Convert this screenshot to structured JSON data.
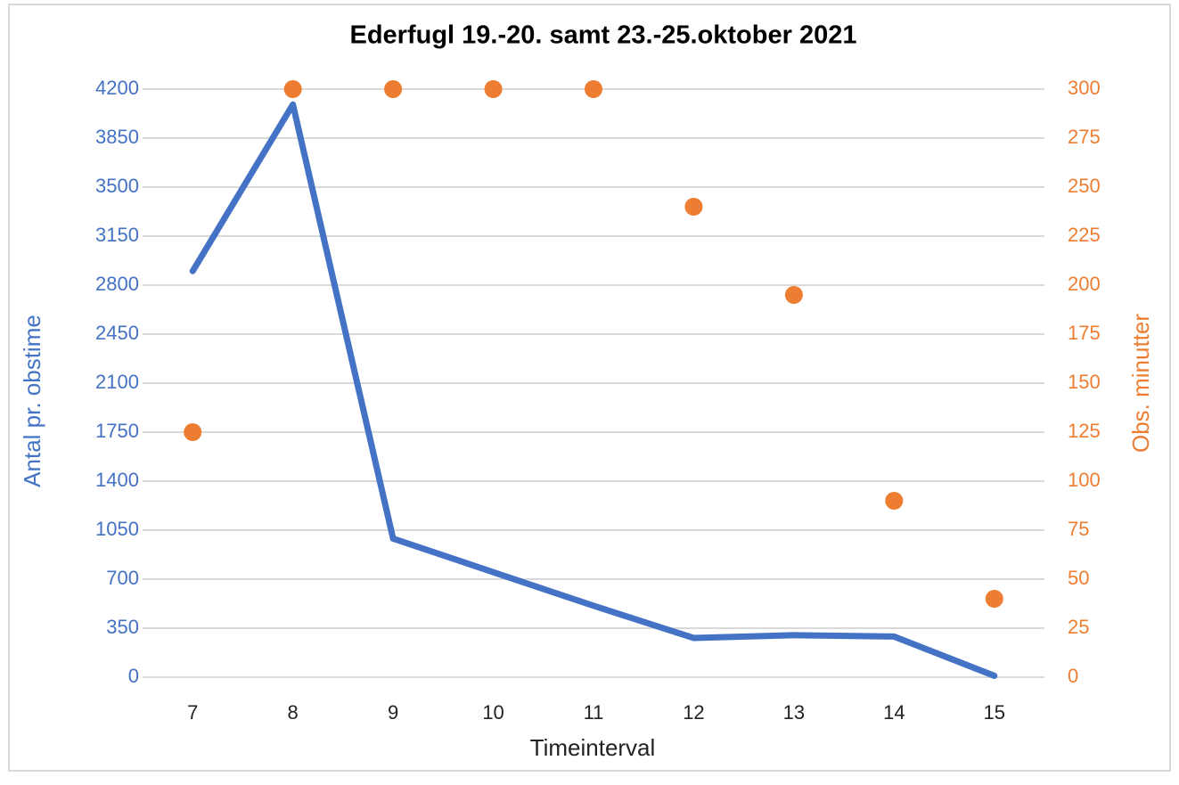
{
  "chart_data": {
    "type": "line",
    "title": "Ederfugl 19.-20. samt 23.-25.oktober 2021",
    "x_label": "Timeinterval",
    "y_label": "Antal pr. obstime",
    "y2_label": "Obs. minutter",
    "categories": [
      "7",
      "8",
      "9",
      "10",
      "11",
      "12",
      "13",
      "14",
      "15"
    ],
    "series": [
      {
        "name": "Antal pr. obstime",
        "type": "line",
        "color": "#4472c4",
        "axis": "y",
        "values": [
          2900,
          4090,
          990,
          750,
          510,
          280,
          300,
          290,
          10
        ]
      },
      {
        "name": "Obs. minutter",
        "type": "scatter",
        "color": "#ed7d31",
        "axis": "y2",
        "values": [
          125,
          300,
          300,
          300,
          300,
          240,
          195,
          90,
          40
        ]
      }
    ],
    "ylim": [
      0,
      4200
    ],
    "yticks": [
      0,
      350,
      700,
      1050,
      1400,
      1750,
      2100,
      2450,
      2800,
      3150,
      3500,
      3850,
      4200
    ],
    "y2lim": [
      0,
      300
    ],
    "y2ticks": [
      0,
      25,
      50,
      75,
      100,
      125,
      150,
      175,
      200,
      225,
      250,
      275,
      300
    ],
    "grid": true
  }
}
